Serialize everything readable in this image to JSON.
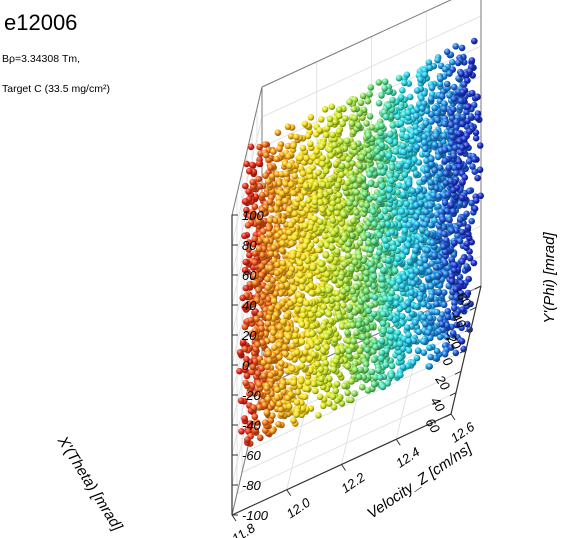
{
  "chart_data": {
    "type": "scatter",
    "title": "e12006",
    "annotations": [
      "Bρ=3.34308 Tm,",
      "Target C (33.5 mg/cm²)"
    ],
    "xlabel": "X'(Theta) [mrad]",
    "ylabel": "Velocity_Z [cm/ns]",
    "zlabel": "Y'(Phi) [mrad]",
    "x_ticks": [
      "-60",
      "-40",
      "-20",
      "0",
      "20",
      "40",
      "60"
    ],
    "y_ticks": [
      "11.8",
      "12.0",
      "12.2",
      "12.4",
      "12.6"
    ],
    "z_ticks": [
      "100",
      "80",
      "60",
      "40",
      "20",
      "0",
      "-20",
      "-40",
      "-60",
      "-80",
      "-100"
    ],
    "xlim": [
      -60,
      60
    ],
    "ylim": [
      11.8,
      12.6
    ],
    "zlim": [
      -100,
      100
    ],
    "projection": "3d",
    "grid": true,
    "colormap": "jet",
    "color_by": "Velocity_Z",
    "colormap_colors": [
      "#1a2fc4",
      "#1f8fe0",
      "#27d6e0",
      "#5fd86a",
      "#b8e02a",
      "#f5e21c",
      "#f59a1a",
      "#e02a17"
    ],
    "series": [
      {
        "band_centers_velocity": [
          12.55,
          12.45,
          12.35,
          12.25,
          12.15,
          12.05,
          11.95,
          11.85
        ],
        "x_theta_range": [
          -60,
          50
        ],
        "y_phi_range": [
          -100,
          100
        ],
        "approx_point_count": 4000
      }
    ]
  }
}
